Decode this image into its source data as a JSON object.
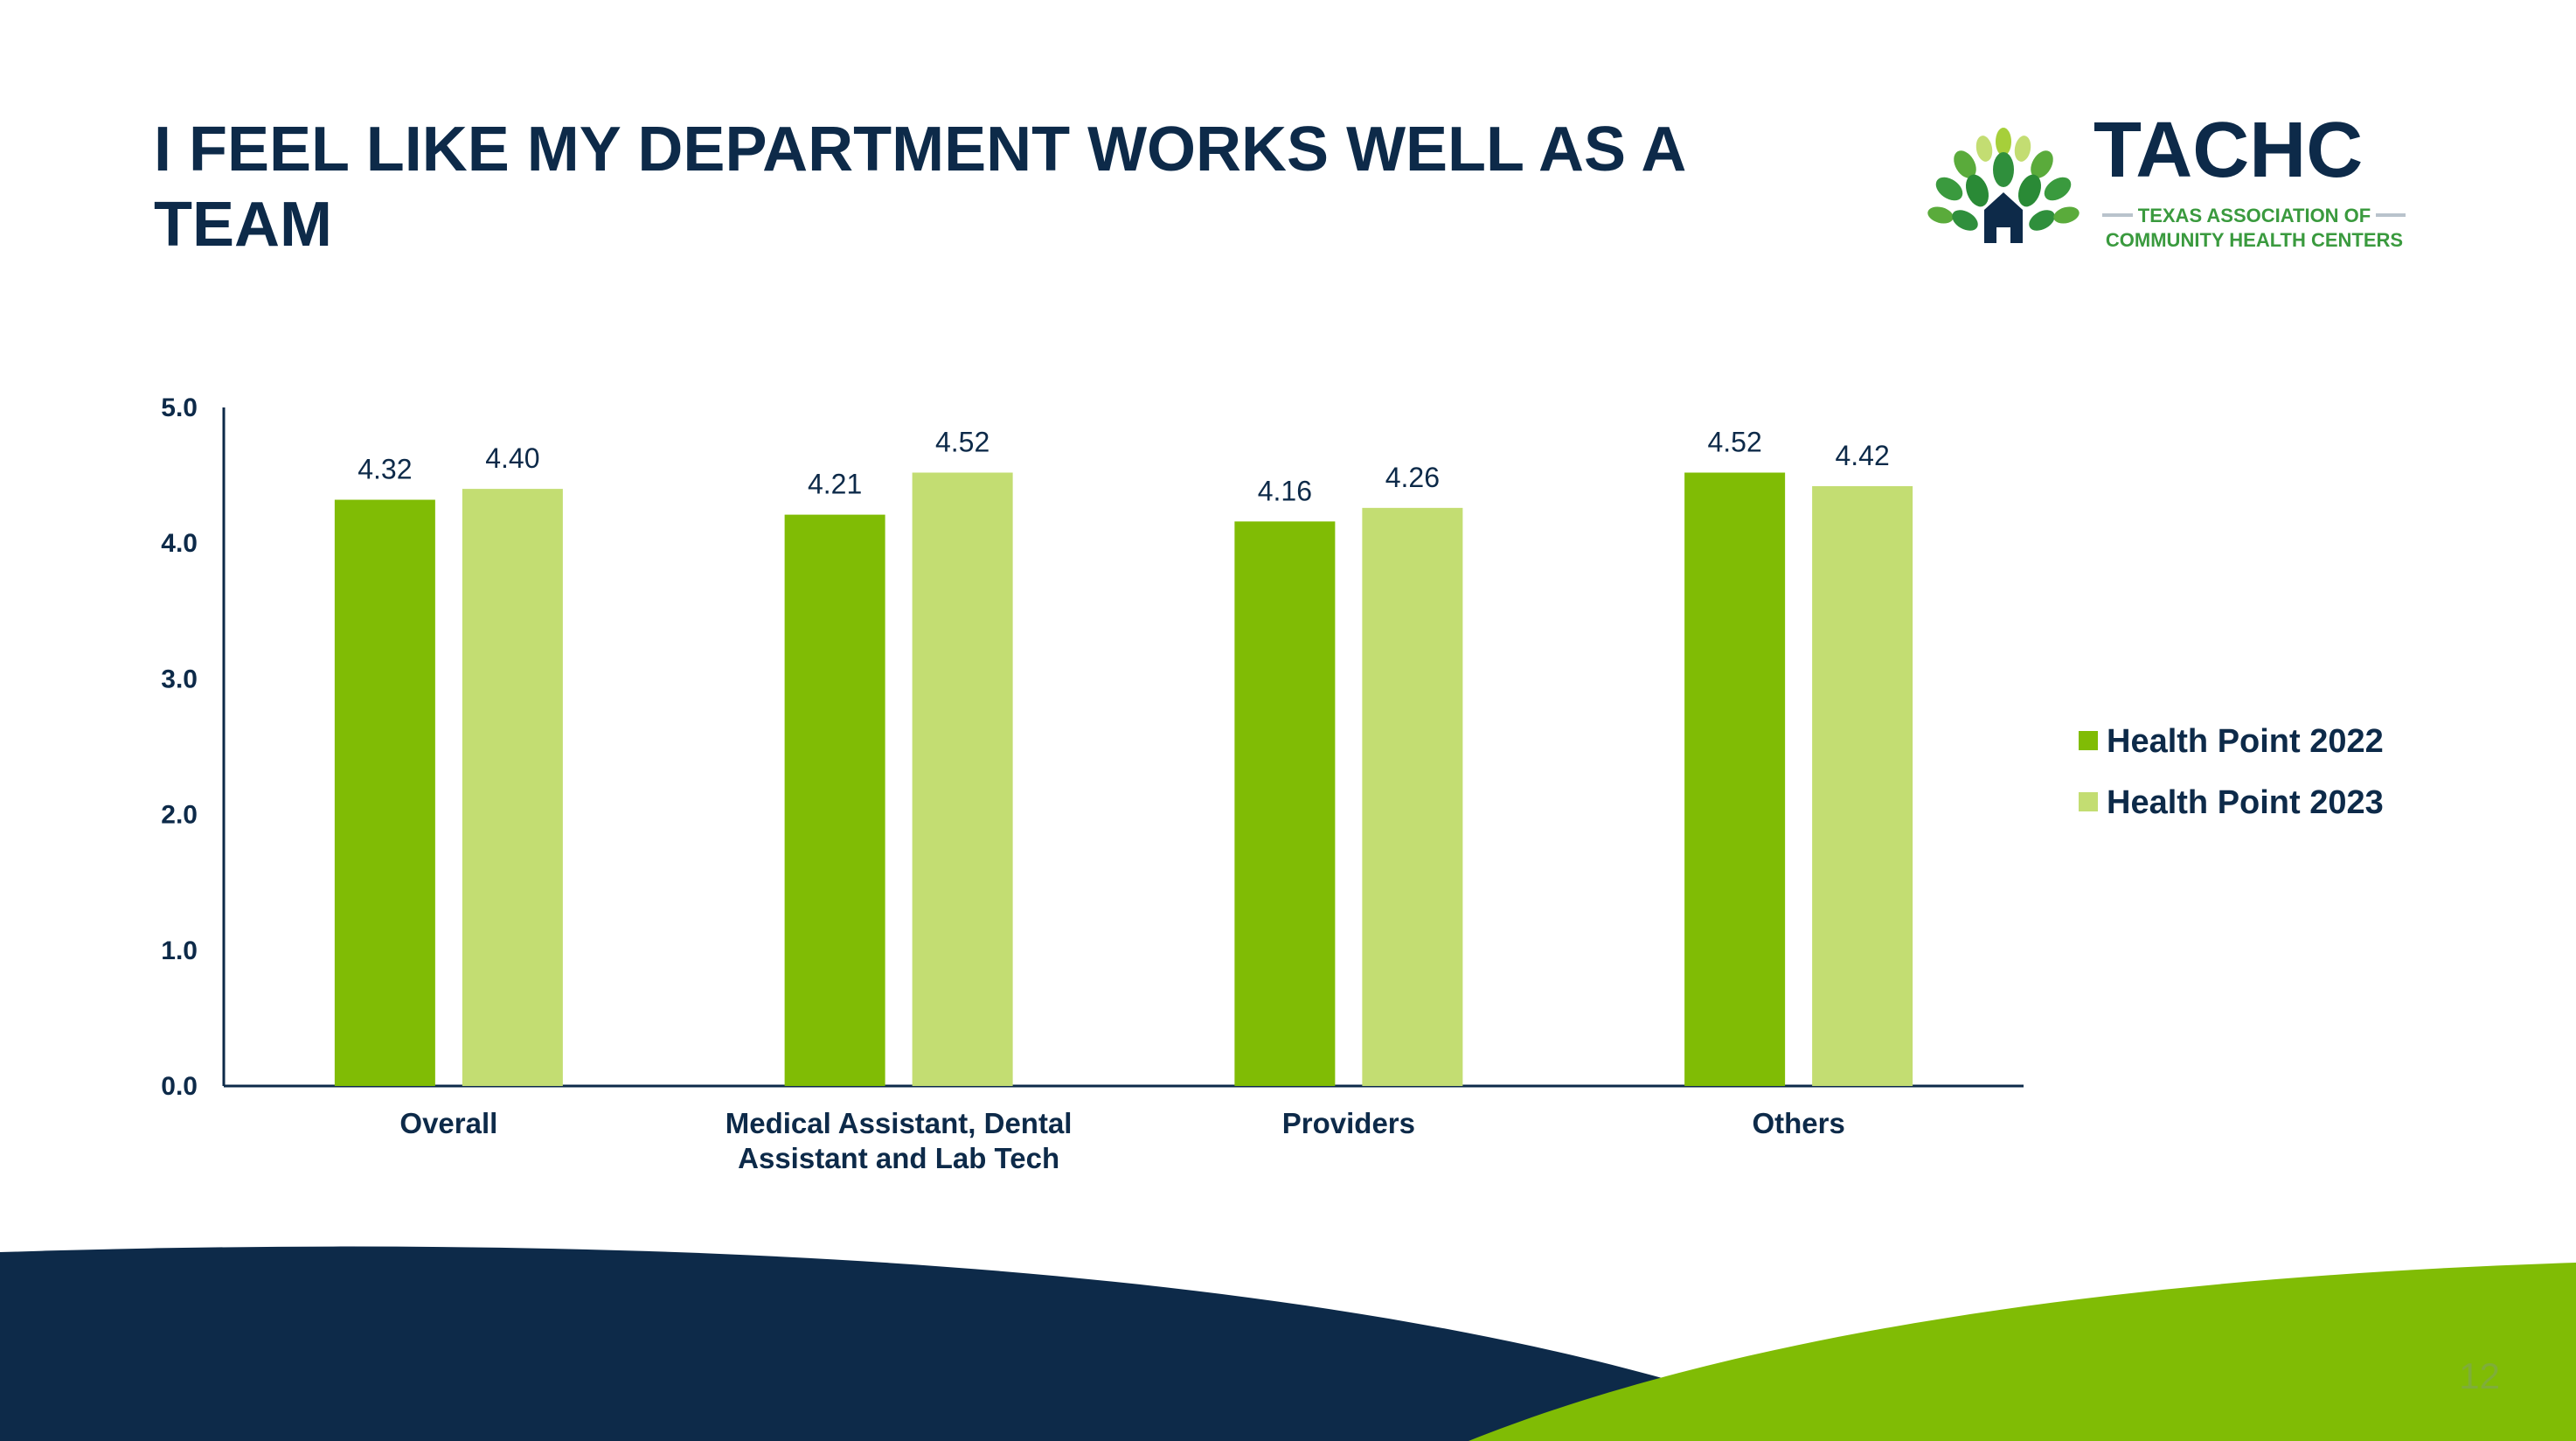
{
  "slide": {
    "title": "I FEEL LIKE MY DEPARTMENT WORKS WELL AS A TEAM",
    "page_number": "12"
  },
  "logo": {
    "name": "TACHC",
    "tagline_line1": "TEXAS ASSOCIATION OF",
    "tagline_line2": "COMMUNITY HEALTH CENTERS"
  },
  "colors": {
    "navy": "#0d2a49",
    "series_2022": "#80bc05",
    "series_2023": "#c3dd72",
    "wave_green": "#80bc05",
    "wave_navy": "#0d2a49"
  },
  "chart_data": {
    "type": "bar",
    "title": "",
    "xlabel": "",
    "ylabel": "",
    "categories": [
      "Overall",
      "Medical Assistant, Dental Assistant and Lab Tech",
      "Providers",
      "Others"
    ],
    "category_lines": [
      [
        "Overall"
      ],
      [
        "Medical Assistant, Dental",
        "Assistant and Lab Tech"
      ],
      [
        "Providers"
      ],
      [
        "Others"
      ]
    ],
    "series": [
      {
        "name": "Health Point 2022",
        "values": [
          4.32,
          4.21,
          4.16,
          4.52
        ]
      },
      {
        "name": "Health Point 2023",
        "values": [
          4.4,
          4.52,
          4.26,
          4.42
        ]
      }
    ],
    "ylim": [
      0,
      5
    ],
    "yticks": [
      "0.0",
      "1.0",
      "2.0",
      "3.0",
      "4.0",
      "5.0"
    ],
    "data_labels": [
      [
        "4.32",
        "4.21",
        "4.16",
        "4.52"
      ],
      [
        "4.40",
        "4.52",
        "4.26",
        "4.42"
      ]
    ],
    "grid": false,
    "legend_position": "right"
  }
}
